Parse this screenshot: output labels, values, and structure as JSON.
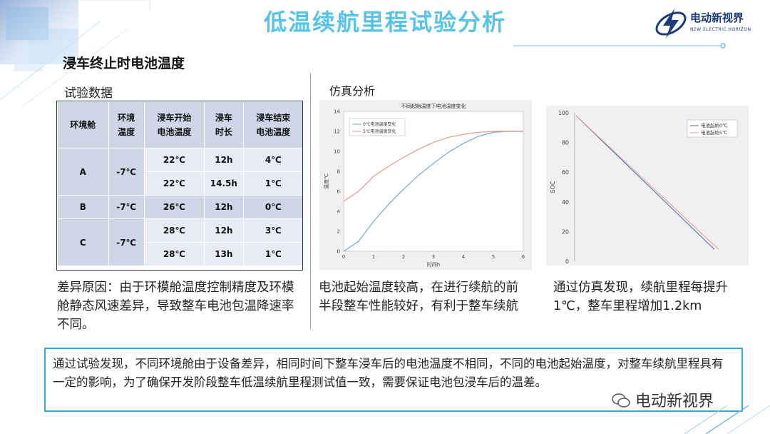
{
  "header": {
    "title": "低温续航里程试验分析",
    "logo_main": "电动新视界",
    "logo_sub": "NEW ELECTRIC HORIZON"
  },
  "section_title": "浸车终止时电池温度",
  "left": {
    "subtitle": "试验数据",
    "table": {
      "headers": [
        "环境舱",
        "环境\n温度",
        "浸车开始\n电池温度",
        "浸车\n时长",
        "浸车结束\n电池温度"
      ],
      "groups": [
        {
          "cabin": "A",
          "env": "-7℃",
          "rows": [
            [
              "22℃",
              "12h",
              "4℃"
            ],
            [
              "22℃",
              "14.5h",
              "1℃"
            ]
          ]
        },
        {
          "cabin": "B",
          "env": "-7℃",
          "rows": [
            [
              "26℃",
              "12h",
              "0℃"
            ]
          ]
        },
        {
          "cabin": "C",
          "env": "-7℃",
          "rows": [
            [
              "28℃",
              "12h",
              "3℃"
            ],
            [
              "28℃",
              "13h",
              "1℃"
            ]
          ]
        }
      ]
    },
    "note": "差异原因：由于环模舱温度控制精度及环模舱静态风速差异，导致整车电池包温降速率不同。"
  },
  "middle": {
    "subtitle": "仿真分析",
    "note": "电池起始温度较高，在进行续航的前半段整车性能较好，有利于整车续航"
  },
  "right": {
    "note": "通过仿真发现，续航里程每提升1℃，整车里程增加1.2km"
  },
  "summary": "通过试验发现，不同环境舱由于设备差异，相同时间下整车浸车后的电池温度不相同，不同的电池起始温度，对整车续航里程具有一定的影响，为了确保开发阶段整车低温续航里程测试值一致，需要保证电池包浸车后的温差。",
  "watermark": "电动新视界",
  "chart_data": [
    {
      "type": "line",
      "title": "不同起始温度下电池温度变化",
      "xlabel": "时间h",
      "ylabel": "温度℃",
      "xlim": [
        0,
        6
      ],
      "ylim": [
        0,
        14
      ],
      "xticks": [
        0,
        1,
        2,
        3,
        4,
        5,
        6
      ],
      "yticks": [
        0,
        2,
        4,
        6,
        8,
        10,
        12,
        14
      ],
      "legend_position": "top-left",
      "series": [
        {
          "name": "0℃电池温度变化",
          "color": "#6fa8dc",
          "x": [
            0,
            0.5,
            1,
            1.5,
            2,
            2.5,
            3,
            3.5,
            4,
            4.5,
            5,
            5.5,
            6
          ],
          "y": [
            0,
            1,
            3,
            4.7,
            6.2,
            7.6,
            8.8,
            9.9,
            10.8,
            11.5,
            11.9,
            12,
            12
          ]
        },
        {
          "name": "5℃电池温度变化",
          "color": "#e8998d",
          "x": [
            0,
            0.5,
            1,
            1.5,
            2,
            2.5,
            3,
            3.5,
            4,
            4.5,
            5,
            5.5,
            6
          ],
          "y": [
            5,
            6,
            7.5,
            8.5,
            9.4,
            10.2,
            10.9,
            11.4,
            11.7,
            11.9,
            12,
            12,
            12
          ]
        }
      ]
    },
    {
      "type": "line",
      "title": "",
      "xlabel": "",
      "ylabel": "SOC",
      "xlim": [
        0,
        1
      ],
      "ylim": [
        0,
        100
      ],
      "yticks": [
        0,
        20,
        40,
        60,
        80,
        100
      ],
      "legend_position": "top-right",
      "series": [
        {
          "name": "电池起始0℃",
          "color": "#3d6fb0",
          "x": [
            0,
            1
          ],
          "y": [
            98,
            8
          ]
        },
        {
          "name": "电池起始5℃",
          "color": "#e8998d",
          "x": [
            0,
            1.03
          ],
          "y": [
            98,
            8
          ]
        }
      ]
    }
  ]
}
